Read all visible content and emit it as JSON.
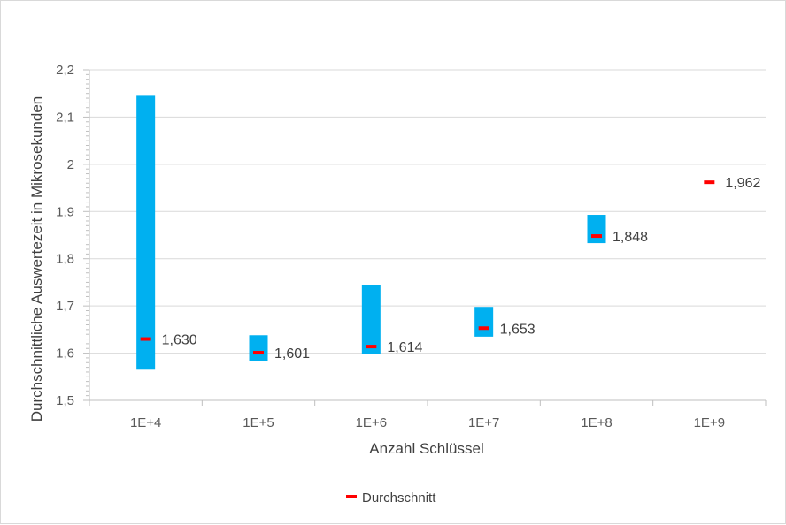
{
  "chart_data": {
    "type": "bar",
    "subtype": "floating-range-with-mean-marker",
    "title": "",
    "xlabel": "Anzahl Schlüssel",
    "ylabel": "Durchschnittliche Auswertezeit in Mikrosekunden",
    "ylim": [
      1.5,
      2.2
    ],
    "yticks": [
      "1,5",
      "1,6",
      "1,7",
      "1,8",
      "1,9",
      "2",
      "2,1",
      "2,2"
    ],
    "ytick_values": [
      1.5,
      1.6,
      1.7,
      1.8,
      1.9,
      2.0,
      2.1,
      2.2
    ],
    "categories": [
      "1E+4",
      "1E+5",
      "1E+6",
      "1E+7",
      "1E+8",
      "1E+9"
    ],
    "ranges": [
      {
        "min": 1.565,
        "max": 2.145
      },
      {
        "min": 1.583,
        "max": 1.638
      },
      {
        "min": 1.598,
        "max": 1.745
      },
      {
        "min": 1.635,
        "max": 1.698
      },
      {
        "min": 1.833,
        "max": 1.893
      },
      null
    ],
    "series": [
      {
        "name": "Durchschnitt",
        "values": [
          1.63,
          1.601,
          1.614,
          1.653,
          1.848,
          1.962
        ],
        "labels": [
          "1,630",
          "1,601",
          "1,614",
          "1,653",
          "1,848",
          "1,962"
        ]
      }
    ],
    "grid": true,
    "legend_position": "bottom",
    "colors": {
      "range_bar": "#00b0f0",
      "mean_marker": "#ff0000",
      "grid": "#d9d9d9",
      "axis": "#bfbfbf"
    }
  }
}
